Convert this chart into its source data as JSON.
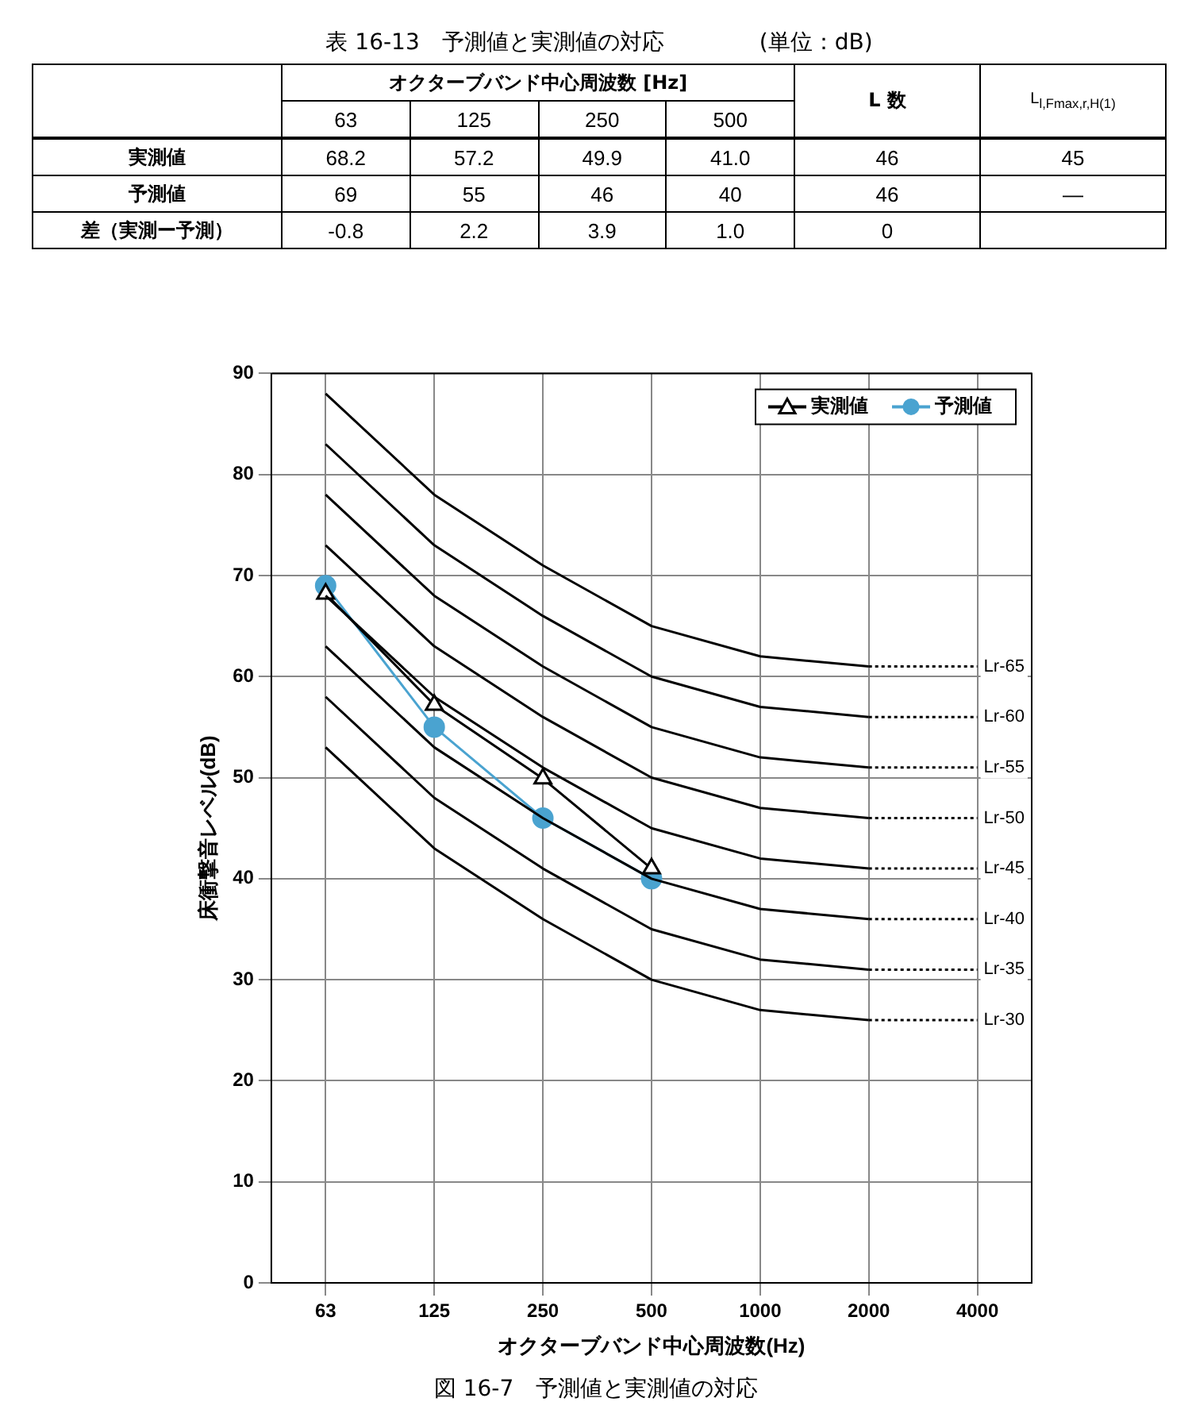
{
  "chart_data": [
    {
      "type": "other",
      "title": "表 16-13　予測値と実測値の対応",
      "subtitle": "(単位：dB)",
      "annotations": [
        "オクターブバンド中心周波数 [Hz]",
        "L 数",
        "L$_{l,Fmax,r,H(1)}$",
        "63",
        "125",
        "250",
        "500",
        "実測値",
        "68.2",
        "57.2",
        "49.9",
        "41.0",
        "46",
        "45",
        "予測値",
        "69",
        "55",
        "46",
        "40",
        "46",
        "—",
        "差（実測ー予測）",
        "-0.8",
        "2.2",
        "3.9",
        "1.0",
        "0"
      ]
    },
    {
      "type": "line",
      "title": "図 16-7　予測値と実測値の対応",
      "xlabel": "オクターブバンド中心周波数(Hz)",
      "ylabel": "床衝撃音レベル(dB)",
      "categories": [
        "63",
        "125",
        "250",
        "500",
        "1000",
        "2000",
        "4000"
      ],
      "ylim": [
        0,
        90
      ],
      "yticks": [
        0,
        10,
        20,
        30,
        40,
        50,
        60,
        70,
        80,
        90
      ],
      "grid": true,
      "legend": "top right",
      "series": [
        {
          "color": "#000000",
          "marker": "none",
          "line_style": "solid",
          "values": [
            88,
            78,
            71,
            65,
            62,
            61,
            null
          ]
        },
        {
          "name": "Lr-65",
          "color": "#000000",
          "marker": "none",
          "line_style": "dotted",
          "values": [
            null,
            null,
            null,
            null,
            null,
            61,
            61
          ]
        },
        {
          "color": "#000000",
          "marker": "none",
          "line_style": "solid",
          "values": [
            83,
            73,
            66,
            60,
            57,
            56,
            null
          ]
        },
        {
          "name": "Lr-60",
          "color": "#000000",
          "marker": "none",
          "line_style": "dotted",
          "values": [
            null,
            null,
            null,
            null,
            null,
            56,
            56
          ]
        },
        {
          "color": "#000000",
          "marker": "none",
          "line_style": "solid",
          "values": [
            78,
            68,
            61,
            55,
            52,
            51,
            null
          ]
        },
        {
          "name": "Lr-55",
          "color": "#000000",
          "marker": "none",
          "line_style": "dotted",
          "values": [
            null,
            null,
            null,
            null,
            null,
            51,
            51
          ]
        },
        {
          "color": "#000000",
          "marker": "none",
          "line_style": "solid",
          "values": [
            73,
            63,
            56,
            50,
            47,
            46,
            null
          ]
        },
        {
          "name": "Lr-50",
          "color": "#000000",
          "marker": "none",
          "line_style": "dotted",
          "values": [
            null,
            null,
            null,
            null,
            null,
            46,
            46
          ]
        },
        {
          "color": "#000000",
          "marker": "none",
          "line_style": "solid",
          "values": [
            68,
            58,
            51,
            45,
            42,
            41,
            null
          ]
        },
        {
          "name": "Lr-45",
          "color": "#000000",
          "marker": "none",
          "line_style": "dotted",
          "values": [
            null,
            null,
            null,
            null,
            null,
            41,
            41
          ]
        },
        {
          "color": "#000000",
          "marker": "none",
          "line_style": "solid",
          "values": [
            63,
            53,
            46,
            40,
            37,
            36,
            null
          ]
        },
        {
          "name": "Lr-40",
          "color": "#000000",
          "marker": "none",
          "line_style": "dotted",
          "values": [
            null,
            null,
            null,
            null,
            null,
            36,
            36
          ]
        },
        {
          "color": "#000000",
          "marker": "none",
          "line_style": "solid",
          "values": [
            58,
            48,
            41,
            35,
            32,
            31,
            null
          ]
        },
        {
          "name": "Lr-35",
          "color": "#000000",
          "marker": "none",
          "line_style": "dotted",
          "values": [
            null,
            null,
            null,
            null,
            null,
            31,
            31
          ]
        },
        {
          "color": "#000000",
          "marker": "none",
          "line_style": "solid",
          "values": [
            53,
            43,
            36,
            30,
            27,
            26,
            null
          ]
        },
        {
          "name": "Lr-30",
          "color": "#000000",
          "marker": "none",
          "line_style": "dotted",
          "values": [
            null,
            null,
            null,
            null,
            null,
            26,
            26
          ]
        },
        {
          "name": "実測値",
          "color": "#000000",
          "marker": "triangle",
          "line_style": "solid",
          "values": [
            68.2,
            57.2,
            49.9,
            41.0,
            null,
            null,
            null
          ]
        },
        {
          "name": "予測値",
          "color": "#4aa3d0",
          "marker": "circle",
          "line_style": "solid",
          "values": [
            69,
            55,
            46,
            40,
            null,
            null,
            null
          ]
        }
      ]
    }
  ]
}
